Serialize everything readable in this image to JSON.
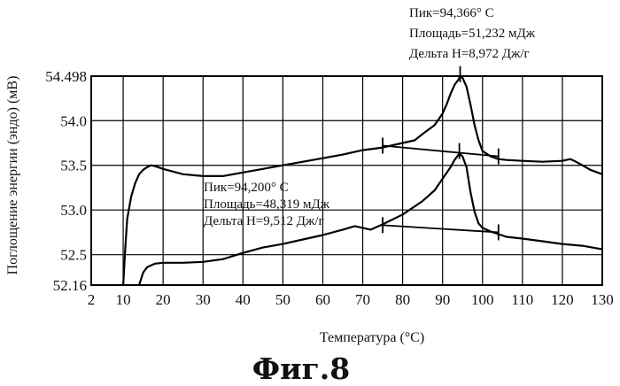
{
  "chart_data": {
    "type": "line",
    "title": "",
    "xlabel": "Температура (°C)",
    "ylabel": "Поглощение энергии (эндо) (мВ)",
    "xlim": [
      2,
      130
    ],
    "ylim": [
      52.16,
      54.498
    ],
    "x_ticks": [
      "2",
      "10",
      "20",
      "30",
      "40",
      "50",
      "60",
      "70",
      "80",
      "90",
      "100",
      "110",
      "120",
      "130"
    ],
    "y_ticks": [
      "52.16",
      "52.5",
      "53.0",
      "53.5",
      "54.0",
      "54.498"
    ],
    "grid": true,
    "series": [
      {
        "x": [
          10,
          10.5,
          11,
          12,
          13,
          14,
          15,
          16,
          17,
          18,
          20,
          25,
          30,
          35,
          40,
          45,
          50,
          55,
          60,
          65,
          70,
          75,
          80,
          83,
          85,
          88,
          90,
          91,
          92,
          93,
          94,
          94.4,
          95,
          96,
          97,
          98,
          99,
          100,
          102,
          104,
          106,
          110,
          115,
          120,
          122,
          123,
          125,
          127,
          130
        ],
        "y": [
          52.16,
          52.55,
          52.9,
          53.15,
          53.3,
          53.4,
          53.45,
          53.48,
          53.5,
          53.49,
          53.46,
          53.4,
          53.38,
          53.38,
          53.42,
          53.46,
          53.5,
          53.54,
          53.58,
          53.62,
          53.67,
          53.7,
          53.75,
          53.78,
          53.85,
          53.95,
          54.08,
          54.18,
          54.3,
          54.4,
          54.46,
          54.498,
          54.48,
          54.38,
          54.18,
          53.95,
          53.78,
          53.66,
          53.6,
          53.57,
          53.56,
          53.55,
          53.54,
          53.55,
          53.57,
          53.55,
          53.5,
          53.45,
          53.4
        ]
      },
      {
        "x": [
          14,
          15,
          16,
          17,
          18,
          20,
          25,
          30,
          35,
          40,
          45,
          50,
          55,
          60,
          65,
          68,
          70,
          72,
          75,
          80,
          85,
          88,
          90,
          92,
          93,
          94,
          94.2,
          95,
          96,
          97,
          98,
          99,
          100,
          102,
          104,
          106,
          110,
          115,
          120,
          125,
          130
        ],
        "y": [
          52.16,
          52.3,
          52.36,
          52.38,
          52.4,
          52.41,
          52.41,
          52.42,
          52.45,
          52.52,
          52.58,
          52.62,
          52.67,
          52.72,
          52.78,
          52.82,
          52.8,
          52.78,
          52.84,
          52.95,
          53.1,
          53.22,
          53.35,
          53.48,
          53.56,
          53.62,
          53.63,
          53.6,
          53.48,
          53.2,
          52.98,
          52.85,
          52.8,
          52.76,
          52.73,
          52.7,
          52.68,
          52.65,
          52.62,
          52.6,
          52.56
        ]
      }
    ],
    "baselines": [
      {
        "x": [
          75,
          104
        ],
        "y": [
          53.72,
          53.6
        ]
      },
      {
        "x": [
          75,
          104
        ],
        "y": [
          52.83,
          52.75
        ]
      }
    ],
    "boundary_ticks": [
      {
        "x": 75,
        "y": 53.72
      },
      {
        "x": 104,
        "y": 53.6
      },
      {
        "x": 75,
        "y": 52.83
      },
      {
        "x": 104,
        "y": 52.75
      },
      {
        "x": 94.4,
        "y": 54.52
      },
      {
        "x": 94.2,
        "y": 53.66
      }
    ],
    "annotations": [
      {
        "lines": [
          "Пик=94,366° С",
          "Площадь=51,232 мДж",
          "Дельта Н=8,972 Дж/г"
        ],
        "anchor": "top-right"
      },
      {
        "lines": [
          "Пик=94,200° С",
          "Площадь=48,319 мДж",
          "Дельта Н=9,512 Дж/г"
        ],
        "anchor": "center"
      }
    ]
  },
  "figure_caption": "Фиг.8"
}
